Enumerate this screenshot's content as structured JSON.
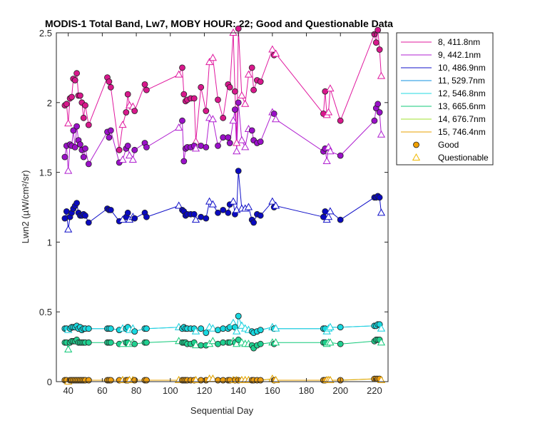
{
  "chart_data": {
    "type": "line",
    "title": "MODIS-1 Total Band, Lw7, MOBY HOUR: 22;  Good and Questionable Data",
    "xlabel": "Sequential Day",
    "ylabel": "Lwn2 (µW/cm²/sr)",
    "xlim": [
      33,
      228
    ],
    "ylim": [
      0,
      2.5
    ],
    "x_ticks": [
      40,
      60,
      80,
      100,
      120,
      140,
      160,
      180,
      200,
      220
    ],
    "y_ticks": [
      0,
      0.5,
      1,
      1.5,
      2,
      2.5
    ],
    "y_tick_labels": [
      "0",
      "0.5",
      "1",
      "1.5",
      "2",
      "2.5"
    ],
    "grid": false,
    "legend_position": "outside-right-top",
    "marker_legend": [
      {
        "label": "Good",
        "marker": "circle",
        "color": "#f0a000"
      },
      {
        "label": "Questionable",
        "marker": "triangle",
        "color": "#f0b800"
      }
    ],
    "x": [
      38,
      39,
      40,
      41,
      42,
      43,
      44,
      45,
      46,
      47,
      48,
      49,
      50,
      52,
      63,
      64,
      65,
      70,
      72,
      74,
      75,
      76,
      78,
      79,
      85,
      86,
      105,
      107,
      108,
      109,
      110,
      112,
      114,
      115,
      118,
      121,
      123,
      125,
      128,
      131,
      134,
      135,
      137,
      138,
      139,
      140,
      142,
      144,
      146,
      148,
      149,
      151,
      153,
      160,
      161,
      162,
      190,
      191,
      192,
      193,
      194,
      200,
      220,
      221,
      222,
      223,
      224
    ],
    "quality": [
      "G",
      "G",
      "Q",
      "G",
      "G",
      "G",
      "G",
      "G",
      "G",
      "G",
      "G",
      "G",
      "G",
      "G",
      "G",
      "G",
      "G",
      "G",
      "Q",
      "G",
      "G",
      "Q",
      "Q",
      "G",
      "G",
      "G",
      "Q",
      "G",
      "G",
      "G",
      "G",
      "G",
      "G",
      "Q",
      "G",
      "G",
      "Q",
      "Q",
      "G",
      "G",
      "G",
      "G",
      "Q",
      "G",
      "Q",
      "G",
      "Q",
      "Q",
      "Q",
      "G",
      "G",
      "G",
      "G",
      "Q",
      "G",
      "Q",
      "G",
      "G",
      "Q",
      "Q",
      "Q",
      "G",
      "G",
      "G",
      "G",
      "G",
      "Q"
    ],
    "series": [
      {
        "name": "8, 411.8nm",
        "color": "#e0189e",
        "fill": "#d8188c",
        "values": [
          1.98,
          1.99,
          1.85,
          2.03,
          2.04,
          2.17,
          2.16,
          2.21,
          2.05,
          2.05,
          2.0,
          1.89,
          1.98,
          1.84,
          2.18,
          2.15,
          2.11,
          1.66,
          1.84,
          1.93,
          2.06,
          1.98,
          1.97,
          1.94,
          2.13,
          2.09,
          2.2,
          2.25,
          2.06,
          2.01,
          2.02,
          2.03,
          2.03,
          1.72,
          2.11,
          1.94,
          2.29,
          2.32,
          2.02,
          1.89,
          2.13,
          2.11,
          2.5,
          2.08,
          1.71,
          2.53,
          2.05,
          1.99,
          2.2,
          2.25,
          2.09,
          2.16,
          2.15,
          2.38,
          2.34,
          2.35,
          1.92,
          2.08,
          1.91,
          1.93,
          2.1,
          1.87,
          2.49,
          2.43,
          2.52,
          2.38,
          2.19
        ]
      },
      {
        "name": "9, 442.1nm",
        "color": "#b020d0",
        "fill": "#9a10c8",
        "values": [
          1.61,
          1.69,
          1.51,
          1.7,
          1.69,
          1.8,
          1.68,
          1.83,
          1.73,
          1.7,
          1.66,
          1.61,
          1.67,
          1.56,
          1.79,
          1.75,
          1.8,
          1.57,
          1.59,
          1.67,
          1.69,
          1.62,
          1.59,
          1.66,
          1.71,
          1.68,
          1.82,
          1.87,
          1.58,
          1.67,
          1.68,
          1.68,
          1.69,
          1.67,
          1.69,
          1.68,
          1.89,
          1.88,
          1.69,
          1.75,
          1.75,
          1.71,
          1.87,
          1.95,
          1.65,
          2.0,
          1.73,
          1.68,
          1.81,
          1.8,
          1.73,
          1.71,
          1.72,
          1.93,
          1.92,
          1.88,
          1.65,
          1.67,
          1.58,
          1.68,
          1.65,
          1.62,
          1.87,
          1.96,
          1.99,
          1.93,
          1.77
        ]
      },
      {
        "name": "10, 486.9nm",
        "color": "#1010c8",
        "fill": "#0a0ac0",
        "values": [
          1.17,
          1.22,
          1.09,
          1.18,
          1.21,
          1.24,
          1.26,
          1.28,
          1.21,
          1.19,
          1.19,
          1.2,
          1.19,
          1.14,
          1.24,
          1.23,
          1.23,
          1.15,
          1.16,
          1.18,
          1.21,
          1.16,
          1.18,
          1.17,
          1.21,
          1.18,
          1.26,
          1.23,
          1.22,
          1.19,
          1.2,
          1.2,
          1.2,
          1.16,
          1.18,
          1.17,
          1.29,
          1.27,
          1.21,
          1.23,
          1.21,
          1.27,
          1.29,
          1.2,
          1.23,
          1.51,
          1.24,
          1.24,
          1.25,
          1.16,
          1.14,
          1.2,
          1.19,
          1.29,
          1.25,
          1.26,
          1.18,
          1.22,
          1.16,
          1.18,
          1.22,
          1.16,
          1.32,
          1.32,
          1.33,
          1.32,
          1.21
        ]
      },
      {
        "name": "11, 529.7nm",
        "color": "#1090e0",
        "fill": "#1098e8",
        "values": [
          0.38,
          0.38,
          0.37,
          0.38,
          0.39,
          0.39,
          0.39,
          0.4,
          0.38,
          0.39,
          0.37,
          0.38,
          0.38,
          0.38,
          0.38,
          0.38,
          0.38,
          0.37,
          0.38,
          0.38,
          0.39,
          0.37,
          0.38,
          0.36,
          0.38,
          0.38,
          0.39,
          0.38,
          0.39,
          0.38,
          0.38,
          0.38,
          0.38,
          0.36,
          0.38,
          0.35,
          0.39,
          0.38,
          0.37,
          0.38,
          0.38,
          0.39,
          0.42,
          0.39,
          0.36,
          0.47,
          0.4,
          0.38,
          0.37,
          0.36,
          0.35,
          0.36,
          0.37,
          0.39,
          0.38,
          0.38,
          0.38,
          0.38,
          0.36,
          0.38,
          0.39,
          0.39,
          0.4,
          0.4,
          0.41,
          0.41,
          0.38
        ]
      },
      {
        "name": "12, 546.8nm",
        "color": "#20d8e0",
        "fill": "#18d8e0",
        "values": [
          0.38,
          0.38,
          0.37,
          0.38,
          0.39,
          0.39,
          0.39,
          0.4,
          0.38,
          0.39,
          0.37,
          0.38,
          0.38,
          0.38,
          0.38,
          0.38,
          0.38,
          0.37,
          0.38,
          0.38,
          0.39,
          0.37,
          0.38,
          0.36,
          0.38,
          0.38,
          0.39,
          0.38,
          0.39,
          0.38,
          0.38,
          0.38,
          0.38,
          0.36,
          0.38,
          0.35,
          0.39,
          0.38,
          0.37,
          0.38,
          0.38,
          0.39,
          0.42,
          0.39,
          0.36,
          0.47,
          0.4,
          0.38,
          0.37,
          0.36,
          0.35,
          0.36,
          0.37,
          0.39,
          0.38,
          0.38,
          0.38,
          0.38,
          0.36,
          0.38,
          0.39,
          0.39,
          0.4,
          0.4,
          0.41,
          0.41,
          0.38
        ]
      },
      {
        "name": "13, 665.6nm",
        "color": "#10c878",
        "fill": "#20d090",
        "values": [
          0.28,
          0.28,
          0.23,
          0.28,
          0.29,
          0.29,
          0.29,
          0.3,
          0.28,
          0.28,
          0.28,
          0.28,
          0.28,
          0.28,
          0.28,
          0.28,
          0.28,
          0.27,
          0.27,
          0.28,
          0.28,
          0.27,
          0.28,
          0.27,
          0.28,
          0.28,
          0.29,
          0.28,
          0.28,
          0.28,
          0.27,
          0.27,
          0.28,
          0.26,
          0.26,
          0.26,
          0.27,
          0.29,
          0.27,
          0.28,
          0.28,
          0.28,
          0.29,
          0.28,
          0.27,
          0.3,
          0.28,
          0.27,
          0.27,
          0.26,
          0.24,
          0.26,
          0.27,
          0.28,
          0.27,
          0.28,
          0.28,
          0.28,
          0.27,
          0.28,
          0.28,
          0.27,
          0.29,
          0.3,
          0.3,
          0.3,
          0.28
        ]
      },
      {
        "name": "14, 676.7nm",
        "color": "#a0e030",
        "fill": "#b8e030",
        "values": [
          0.01,
          0.01,
          0.0,
          0.01,
          0.01,
          0.01,
          0.01,
          0.01,
          0.01,
          0.01,
          0.01,
          0.01,
          0.01,
          0.01,
          0.01,
          0.01,
          0.01,
          0.01,
          0.01,
          0.01,
          0.01,
          0.01,
          0.01,
          0.01,
          0.01,
          0.01,
          0.01,
          0.01,
          0.01,
          0.01,
          0.01,
          0.01,
          0.01,
          0.01,
          0.01,
          0.01,
          0.02,
          0.02,
          0.01,
          0.01,
          0.01,
          0.01,
          0.01,
          0.01,
          0.01,
          0.01,
          0.01,
          0.01,
          0.01,
          0.01,
          0.01,
          0.01,
          0.01,
          0.02,
          0.01,
          0.01,
          0.01,
          0.01,
          0.01,
          0.01,
          0.01,
          0.01,
          0.02,
          0.02,
          0.02,
          0.02,
          0.01
        ]
      },
      {
        "name": "15, 746.4nm",
        "color": "#e8a000",
        "fill": "#f0a010",
        "values": [
          0.01,
          0.01,
          0.0,
          0.01,
          0.01,
          0.01,
          0.01,
          0.01,
          0.01,
          0.01,
          0.01,
          0.01,
          0.01,
          0.01,
          0.01,
          0.01,
          0.01,
          0.01,
          0.01,
          0.01,
          0.01,
          0.01,
          0.01,
          0.01,
          0.01,
          0.01,
          0.01,
          0.01,
          0.01,
          0.01,
          0.01,
          0.01,
          0.01,
          0.01,
          0.01,
          0.01,
          0.02,
          0.02,
          0.01,
          0.01,
          0.01,
          0.01,
          0.01,
          0.01,
          0.01,
          0.01,
          0.01,
          0.01,
          0.01,
          0.01,
          0.01,
          0.01,
          0.01,
          0.02,
          0.01,
          0.01,
          0.01,
          0.01,
          0.01,
          0.01,
          0.01,
          0.01,
          0.02,
          0.02,
          0.02,
          0.02,
          0.01
        ]
      }
    ]
  }
}
